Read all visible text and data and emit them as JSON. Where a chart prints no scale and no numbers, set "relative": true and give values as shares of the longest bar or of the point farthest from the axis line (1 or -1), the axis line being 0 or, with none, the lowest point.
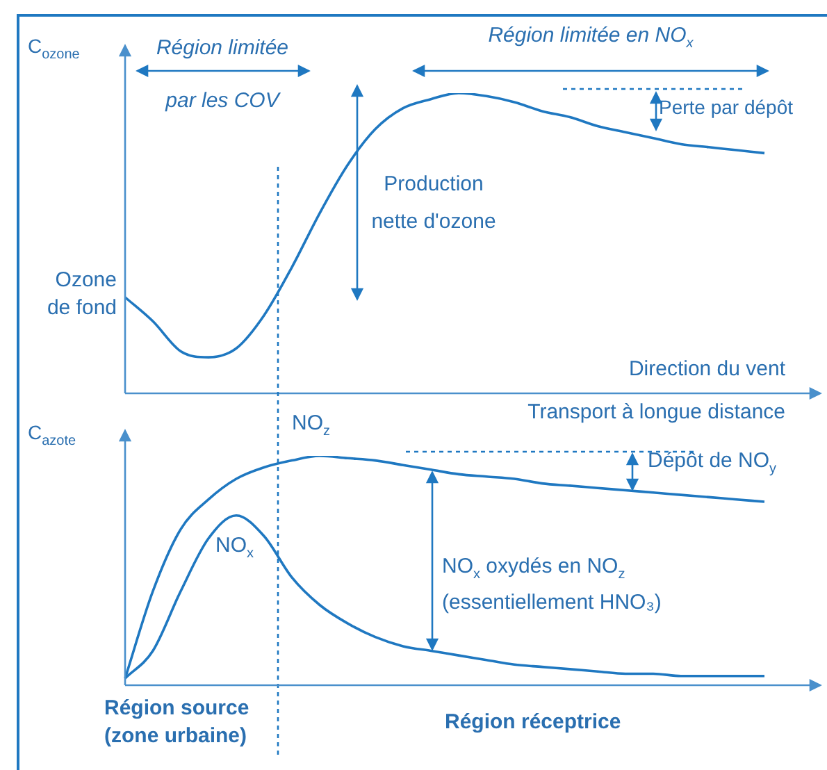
{
  "chart_data": [
    {
      "type": "line",
      "relative": true,
      "ylabel": "C$_{ozone}$",
      "xlabel": "Direction du vent",
      "categories": [
        null,
        null,
        null,
        null,
        null,
        null,
        null,
        null,
        null,
        null,
        null,
        null,
        null,
        null,
        null,
        null,
        null,
        null,
        null,
        null,
        null,
        null,
        null,
        null,
        null,
        null
      ],
      "series": [
        {
          "color": "#1f78c1",
          "values": [
            0.32,
            0.24,
            0.14,
            0.12,
            0.15,
            0.26,
            0.42,
            0.6,
            0.76,
            0.88,
            0.95,
            0.98,
            1.0,
            0.99,
            0.97,
            0.94,
            0.92,
            0.89,
            0.87,
            0.85,
            0.83,
            0.82,
            0.81,
            0.8,
            null,
            null
          ]
        }
      ],
      "annotations": [
        "Région limitée par les COV",
        "Région limitée en NO$_{x}$",
        "Perte par dépôt",
        "Production nette d'ozone",
        "Ozone de fond"
      ],
      "legend": false,
      "grid": false,
      "marker": "none",
      "line_style": "solid"
    },
    {
      "type": "line",
      "relative": true,
      "ylabel": "C$_{azote}$",
      "categories": [
        null,
        null,
        null,
        null,
        null,
        null,
        null,
        null,
        null,
        null,
        null,
        null,
        null,
        null,
        null,
        null,
        null,
        null,
        null,
        null,
        null,
        null,
        null,
        null,
        null,
        null
      ],
      "series": [
        {
          "name": "NO$_{z}$",
          "color": "#1f78c1",
          "values": [
            0.03,
            0.41,
            0.68,
            0.81,
            0.9,
            0.95,
            0.98,
            1.0,
            0.99,
            0.98,
            0.96,
            0.94,
            0.92,
            0.91,
            0.9,
            0.88,
            0.87,
            0.86,
            0.85,
            0.84,
            0.83,
            0.82,
            0.81,
            0.8,
            null,
            null
          ]
        },
        {
          "name": "NO$_{x}$",
          "color": "#1f78c1",
          "values": [
            0.03,
            0.15,
            0.41,
            0.64,
            0.74,
            0.65,
            0.47,
            0.35,
            0.27,
            0.21,
            0.17,
            0.15,
            0.13,
            0.11,
            0.09,
            0.08,
            0.07,
            0.06,
            0.05,
            0.05,
            0.04,
            0.04,
            0.04,
            0.04,
            null,
            null
          ]
        }
      ],
      "annotations": [
        "Transport à longue distance",
        "Dépôt de NO$_{y}$",
        "NO$_{x}$ oxydés en NO$_{z}$ (essentiellement HNO₃)",
        "Région source (zone urbaine)",
        "Région réceptrice"
      ],
      "legend": false,
      "grid": false,
      "marker": "none",
      "line_style": "solid"
    }
  ]
}
